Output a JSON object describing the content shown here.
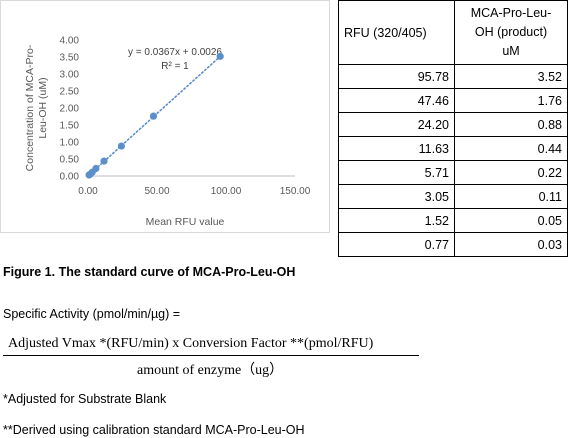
{
  "chart_data": {
    "type": "scatter",
    "x": [
      95.78,
      47.46,
      24.2,
      11.63,
      5.71,
      3.05,
      1.52,
      0.77
    ],
    "y": [
      3.52,
      1.76,
      0.88,
      0.44,
      0.22,
      0.11,
      0.05,
      0.03
    ],
    "xlabel": "Mean RFU value",
    "ylabel_line1": "Concentration of MCA-Pro-",
    "ylabel_line2": "Leu-OH (uM)",
    "xlim": [
      0,
      150
    ],
    "ylim": [
      0,
      4
    ],
    "x_ticks": [
      "0.00",
      "50.00",
      "100.00",
      "150.00"
    ],
    "y_ticks": [
      "0.00",
      "0.50",
      "1.00",
      "1.50",
      "2.00",
      "2.50",
      "3.00",
      "3.50",
      "4.00"
    ],
    "trendline": {
      "slope": 0.0367,
      "intercept": 0.0026,
      "style": "dotted"
    },
    "equation": "y = 0.0367x + 0.0026",
    "r_squared": "R² = 1",
    "grid": false,
    "series_color": "#5b8fcb"
  },
  "table": {
    "header_rfu": "RFU (320/405)",
    "header_conc_lines": [
      "MCA-Pro-Leu-",
      "OH (product)",
      "uM"
    ],
    "rows": [
      [
        "95.78",
        "3.52"
      ],
      [
        "47.46",
        "1.76"
      ],
      [
        "24.20",
        "0.88"
      ],
      [
        "11.63",
        "0.44"
      ],
      [
        "5.71",
        "0.22"
      ],
      [
        "3.05",
        "0.11"
      ],
      [
        "1.52",
        "0.05"
      ],
      [
        "0.77",
        "0.03"
      ]
    ]
  },
  "caption": "Figure 1. The standard curve of MCA-Pro-Leu-OH",
  "activity_label": "Specific Activity (pmol/min/µg) =",
  "formula": {
    "numerator": "Adjusted Vmax *(RFU/min)  x Conversion  Factor **(pmol/RFU)",
    "denominator": "amount  of enzyme（ug）"
  },
  "notes": {
    "note1": "*Adjusted for Substrate Blank",
    "note2": "**Derived using calibration standard MCA-Pro-Leu-OH"
  }
}
